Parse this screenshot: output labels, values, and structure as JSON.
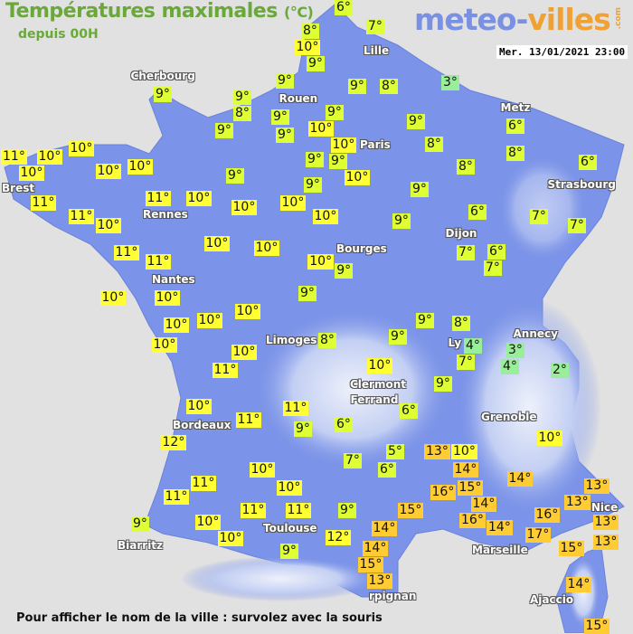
{
  "header": {
    "title": "Températures maximales",
    "unit": "(°C)",
    "subtitle": "depuis 00H",
    "logo_main": "meteo-",
    "logo_accent": "villes",
    "logo_suffix": ".com",
    "datetime": "Mer. 13/01/2021 23:00"
  },
  "footer": {
    "hint": "Pour afficher le nom de la ville : survolez avec la souris"
  },
  "colors": {
    "land": "#7b93e8",
    "sea": "#e1e1e1",
    "cold_2_4": "#99ee99",
    "cool_5_9": "#ddff33",
    "mild_10_12": "#ffff33",
    "warm_13_17": "#ffcc33"
  },
  "cities": [
    "Lille",
    "Cherbourg",
    "Rouen",
    "Metz",
    "Paris",
    "Brest",
    "Strasbourg",
    "Rennes",
    "Dijon",
    "Bourges",
    "Nantes",
    "Annecy",
    "Limoges",
    "Ly",
    "Clermont",
    "Ferrand",
    "Grenoble",
    "Bordeaux",
    "Nice",
    "Toulouse",
    "Marseille",
    "Biarritz",
    "rpignan",
    "Ajaccio"
  ],
  "temperatures": [
    8,
    6,
    7,
    10,
    9,
    9,
    9,
    8,
    3,
    9,
    9,
    8,
    9,
    9,
    9,
    9,
    10,
    9,
    6,
    10,
    8,
    8,
    10,
    11,
    10,
    10,
    10,
    10,
    9,
    9,
    9,
    10,
    8,
    6,
    9,
    9,
    11,
    11,
    10,
    10,
    10,
    11,
    10,
    10,
    9,
    6,
    7,
    7,
    11,
    10,
    10,
    11,
    10,
    9,
    7,
    6,
    7,
    10,
    10,
    9,
    10,
    10,
    10,
    9,
    8,
    10,
    8,
    9,
    4,
    3,
    7,
    4,
    2,
    10,
    11,
    10,
    9,
    10,
    11,
    11,
    6,
    6,
    9,
    10,
    12,
    13,
    10,
    5,
    7,
    6,
    14,
    14,
    10,
    11,
    10,
    16,
    15,
    13,
    13,
    11,
    14,
    11,
    11,
    9,
    15,
    16,
    13,
    16,
    14,
    9,
    10,
    14,
    17,
    13,
    10,
    12,
    15,
    9,
    14,
    15,
    13,
    14,
    15
  ]
}
